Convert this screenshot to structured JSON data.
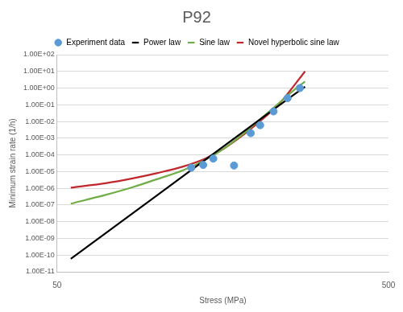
{
  "chart_data": {
    "type": "line",
    "title": "P92",
    "x_label": "Stress (MPa)",
    "y_label": "Minimum strain rate (1/h)",
    "log": true,
    "grid": "y",
    "legend": "top",
    "xlim": [
      50,
      500
    ],
    "xticks": [
      50,
      500
    ],
    "ylim": [
      1e-11,
      100
    ],
    "yticks": [
      {
        "value": 1e-11,
        "label": "1.00E-11"
      },
      {
        "value": 1e-10,
        "label": "1.00E-10"
      },
      {
        "value": 1e-09,
        "label": "1.00E-09"
      },
      {
        "value": 1e-08,
        "label": "1.00E-08"
      },
      {
        "value": 1e-07,
        "label": "1.00E-07"
      },
      {
        "value": 1e-06,
        "label": "1.00E-06"
      },
      {
        "value": 1e-05,
        "label": "1.00E-05"
      },
      {
        "value": 0.0001,
        "label": "1.00E-04"
      },
      {
        "value": 0.001,
        "label": "1.00E-03"
      },
      {
        "value": 0.01,
        "label": "1.00E-02"
      },
      {
        "value": 0.1,
        "label": "1.00E-01"
      },
      {
        "value": 1,
        "label": "1.00E+00"
      },
      {
        "value": 10,
        "label": "1.00E+01"
      },
      {
        "value": 100,
        "label": "1.00E+02"
      }
    ],
    "series": [
      {
        "name": "Experiment data",
        "type": "scatter",
        "marker": "circle",
        "color": "#5b9bd5",
        "x": [
          127,
          138,
          148,
          171,
          192,
          205,
          225,
          248,
          270
        ],
        "values": [
          1.7e-05,
          2.5e-05,
          6e-05,
          2.3e-05,
          0.002,
          0.006,
          0.04,
          0.25,
          1.0
        ]
      },
      {
        "name": "Power law",
        "type": "line",
        "line_style": "solid",
        "color": "#000000",
        "x": [
          55,
          100,
          150,
          200,
          250,
          280
        ],
        "values": [
          6e-11,
          3.7e-07,
          0.00014,
          0.0093,
          0.24,
          1.2
        ]
      },
      {
        "name": "Sine law",
        "type": "line",
        "line_style": "solid",
        "color": "#70ad47",
        "x": [
          55,
          70,
          85,
          100,
          120,
          140,
          160,
          180,
          200,
          220,
          240,
          260,
          280
        ],
        "values": [
          1.2e-07,
          4e-07,
          1.2e-06,
          3.5e-06,
          1.2e-05,
          5e-05,
          0.00025,
          0.0015,
          0.009,
          0.045,
          0.2,
          0.8,
          2.5
        ]
      },
      {
        "name": "Novel hyperbolic sine law",
        "type": "line",
        "line_style": "solid",
        "color": "#c0282d",
        "x": [
          55,
          70,
          85,
          100,
          120,
          140,
          160,
          180,
          200,
          220,
          240,
          260,
          280
        ],
        "values": [
          1.1e-06,
          2e-06,
          4e-06,
          8e-06,
          2e-05,
          6e-05,
          0.00025,
          0.0013,
          0.007,
          0.035,
          0.2,
          1.5,
          10
        ]
      }
    ]
  }
}
